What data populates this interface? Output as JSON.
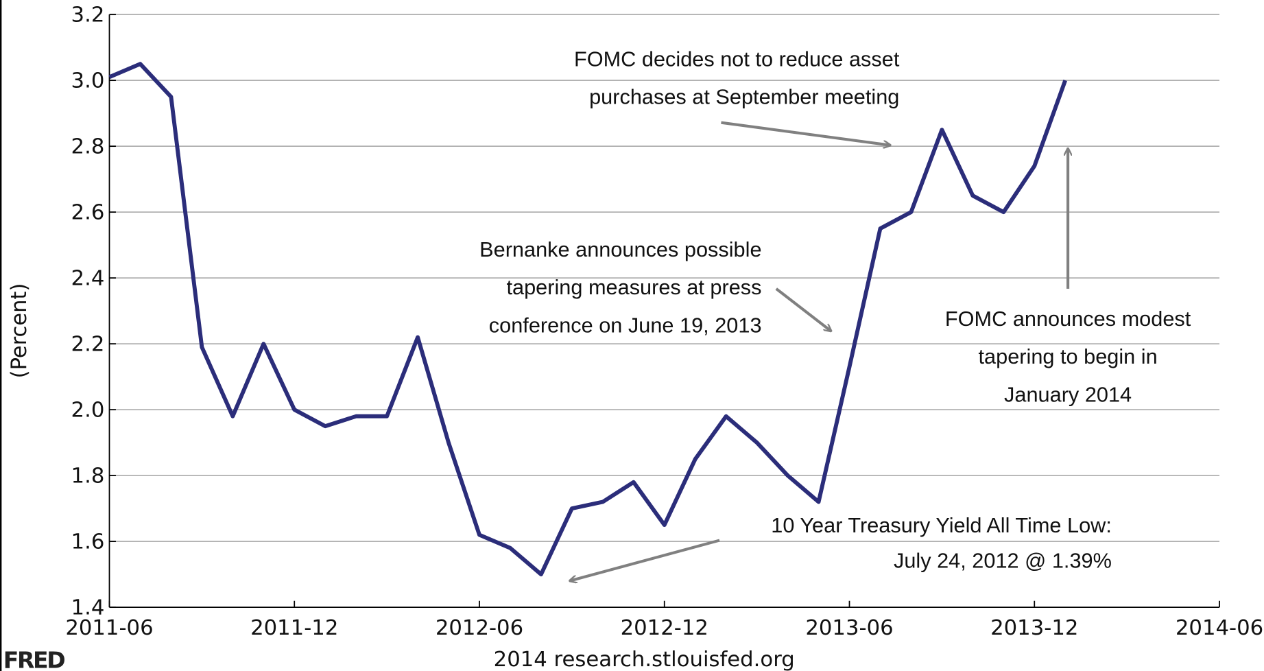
{
  "chart_data": {
    "type": "line",
    "y_label": "(Percent)",
    "source": "2014 research.stlouisfed.org",
    "logo": "FRED",
    "x": [
      "2011-06",
      "2011-07",
      "2011-08",
      "2011-09",
      "2011-10",
      "2011-11",
      "2011-12",
      "2012-01",
      "2012-02",
      "2012-03",
      "2012-04",
      "2012-05",
      "2012-06",
      "2012-07",
      "2012-08",
      "2012-09",
      "2012-10",
      "2012-11",
      "2012-12",
      "2013-01",
      "2013-02",
      "2013-03",
      "2013-04",
      "2013-05",
      "2013-06",
      "2013-07",
      "2013-08",
      "2013-09",
      "2013-10",
      "2013-11",
      "2013-12",
      "2014-01"
    ],
    "series": [
      {
        "color": "#2b2d7a",
        "values": [
          3.01,
          3.05,
          2.95,
          2.19,
          1.98,
          2.2,
          2.0,
          1.95,
          1.98,
          1.98,
          2.22,
          1.9,
          1.62,
          1.58,
          1.5,
          1.7,
          1.72,
          1.78,
          1.65,
          1.85,
          1.98,
          1.9,
          1.8,
          1.72,
          2.13,
          2.55,
          2.6,
          2.85,
          2.65,
          2.6,
          2.74,
          3.0
        ]
      }
    ],
    "xlim": [
      "2011-06",
      "2014-06"
    ],
    "xticks": [
      "2011-06",
      "2011-12",
      "2012-06",
      "2012-12",
      "2013-06",
      "2013-12",
      "2014-06"
    ],
    "ylim": [
      1.4,
      3.2
    ],
    "yticks": [
      1.4,
      1.6,
      1.8,
      {
        "value": 2,
        "label": "2.0"
      },
      2.2,
      2.4,
      2.6,
      2.8,
      {
        "value": 3,
        "label": "3.0"
      },
      3.2
    ],
    "grid": true,
    "annotations": [
      {
        "lines": [
          "FOMC decides not to reduce asset",
          "purchases at September meeting"
        ]
      },
      {
        "lines": [
          "Bernanke announces possible",
          "tapering measures at press",
          "conference on June 19, 2013"
        ]
      },
      {
        "lines": [
          "10 Year Treasury Yield All Time Low:",
          "July 24, 2012 @ 1.39%"
        ]
      },
      {
        "lines": [
          "FOMC announces modest",
          "tapering to begin in",
          "January 2014"
        ]
      }
    ]
  }
}
